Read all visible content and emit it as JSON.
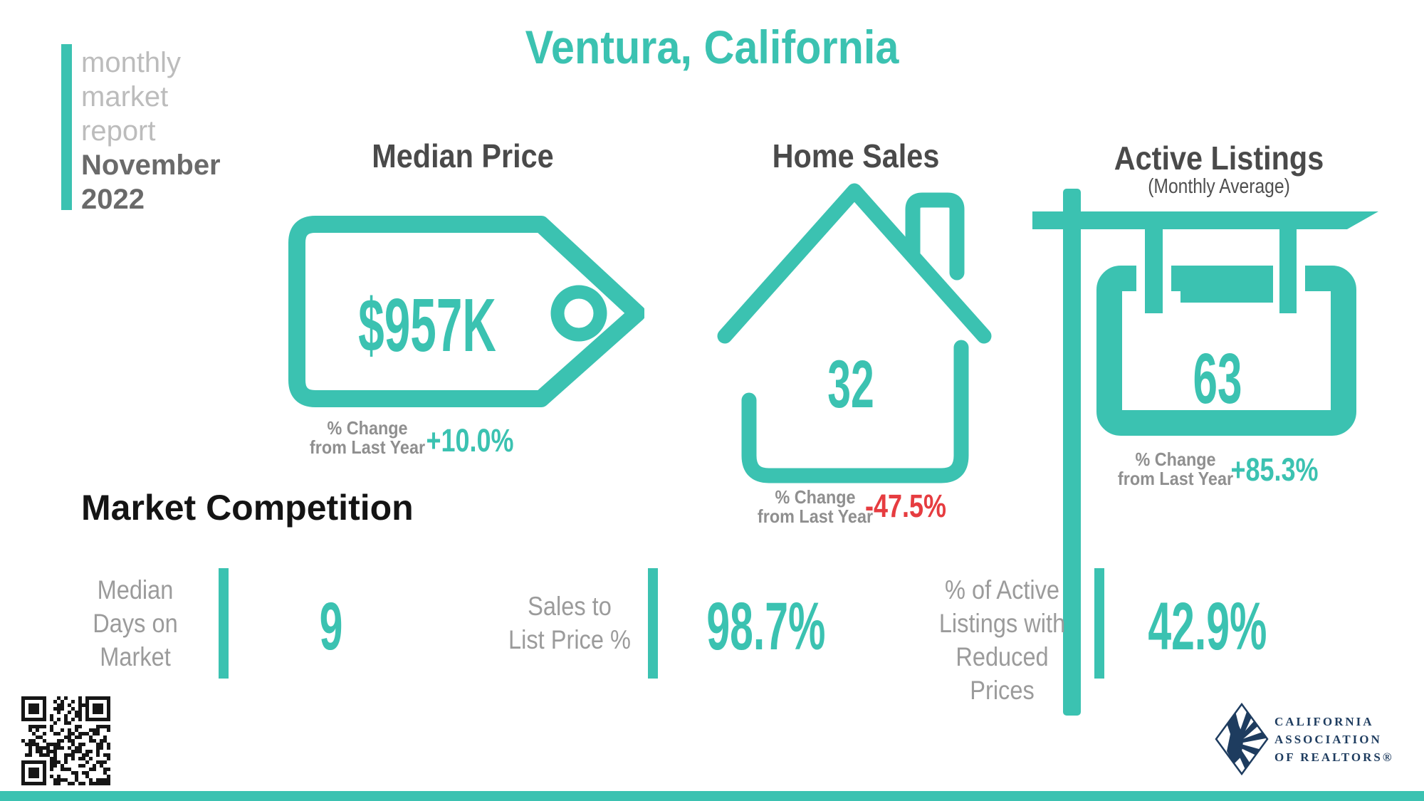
{
  "colors": {
    "teal": "#3BC2B1",
    "red": "#E63C40",
    "navy": "#1E3C5F",
    "gray_label": "#8f8f8f",
    "heading_gray": "#4a4a4a"
  },
  "sidebar": {
    "line1": "monthly",
    "line2": "market",
    "line3": "report",
    "month": "November",
    "year": "2022"
  },
  "title": "Ventura, California",
  "median_price": {
    "heading": "Median Price",
    "value": "$957K",
    "change_label": "% Change\nfrom Last Year",
    "change_value": "+10.0%",
    "change_color": "#3BC2B1"
  },
  "home_sales": {
    "heading": "Home Sales",
    "value": "32",
    "change_label": "% Change\nfrom Last Year",
    "change_value": "-47.5%",
    "change_color": "#E63C40"
  },
  "active_listings": {
    "heading": "Active Listings",
    "subheading": "(Monthly Average)",
    "value": "63",
    "change_label": "% Change\nfrom Last Year",
    "change_value": "+85.3%",
    "change_color": "#3BC2B1"
  },
  "market_competition": {
    "heading": "Market Competition",
    "metric1": {
      "label": "Median\nDays on\nMarket",
      "value": "9"
    },
    "metric2": {
      "label": "Sales to\nList Price %",
      "value": "98.7%"
    },
    "metric3": {
      "label": "% of Active\nListings with\nReduced Prices",
      "value": "42.9%"
    }
  },
  "logo": {
    "text": "CALIFORNIA\nASSOCIATION\nOF REALTORS®"
  }
}
